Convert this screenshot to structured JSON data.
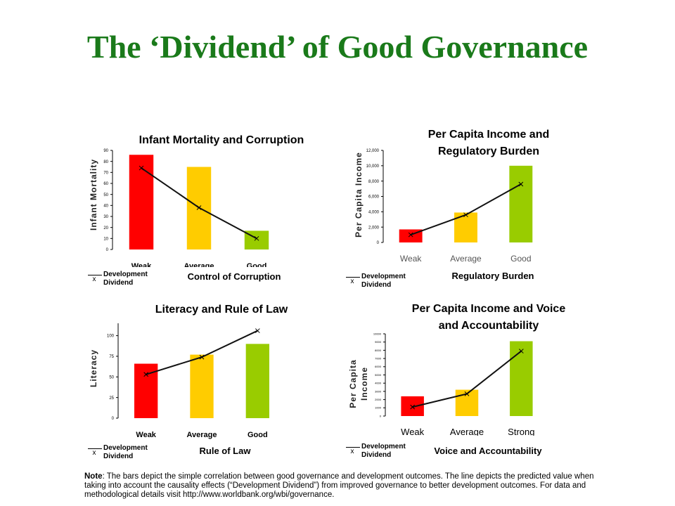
{
  "title": "The ‘Dividend’ of Good Governance",
  "legend_label": "Development Dividend",
  "legend_line1": "Development",
  "legend_line2": "Dividend",
  "legend_marker": "x",
  "note": {
    "label": "Note",
    "text": ": The  bars depict the simple correlation between  good governance and development outcomes.  The line depicts the predicted value when  taking into account the causality effects (“Development Dividend”) from improved governance to better development outcomes. For data and methodological details visit http://www.worldbank.org/wbi/governance."
  },
  "colors": {
    "weak": "#ff0000",
    "average": "#ffcc00",
    "good": "#99cc00",
    "title": "#1a7a1a"
  },
  "chart_data": [
    {
      "type": "bar",
      "title": "Infant Mortality and Corruption",
      "ylabel": "Infant Mortality",
      "xlabel": "Control of Corruption",
      "categories": [
        "Weak",
        "Average",
        "Good"
      ],
      "values": [
        86,
        75,
        17
      ],
      "line": {
        "name": "Development Dividend",
        "values": [
          74,
          38,
          10
        ]
      },
      "ylim": [
        0,
        90
      ],
      "yticks": [
        0,
        10,
        20,
        30,
        40,
        50,
        60,
        70,
        80,
        90
      ],
      "ytick_labels": [
        "0",
        "10",
        "20",
        "30",
        "40",
        "50",
        "60",
        "70",
        "80",
        "90"
      ]
    },
    {
      "type": "bar",
      "title": "Per Capita Income and Regulatory Burden",
      "ylabel": "Per Capita Income",
      "xlabel": "Regulatory Burden",
      "categories": [
        "Weak",
        "Average",
        "Good"
      ],
      "values": [
        1700,
        3900,
        10000
      ],
      "line": {
        "name": "Development Dividend",
        "values": [
          1000,
          3600,
          7600
        ]
      },
      "ylim": [
        0,
        12000
      ],
      "yticks": [
        0,
        2000,
        4000,
        6000,
        8000,
        10000,
        12000
      ],
      "ytick_labels": [
        "0",
        "2,000",
        "4,000",
        "6,000",
        "8,000",
        "10,000",
        "12,000"
      ]
    },
    {
      "type": "bar",
      "title": "Literacy and Rule of Law",
      "ylabel": "Literacy",
      "xlabel": "Rule of Law",
      "categories": [
        "Weak",
        "Average",
        "Good"
      ],
      "values": [
        66,
        77,
        90
      ],
      "line": {
        "name": "Development Dividend",
        "values": [
          53,
          74,
          106
        ]
      },
      "ylim": [
        0,
        115
      ],
      "yticks": [
        0,
        25,
        50,
        75,
        100
      ],
      "ytick_labels": [
        "0",
        "25",
        "50",
        "75",
        "100"
      ]
    },
    {
      "type": "bar",
      "title": "Per Capita Income and Voice and Accountability",
      "ylabel": "Per Capita Income",
      "xlabel": "Voice and Accountability",
      "categories": [
        "Weak",
        "Average",
        "Strong"
      ],
      "values": [
        2400,
        3200,
        9100
      ],
      "line": {
        "name": "Development Dividend",
        "values": [
          1100,
          2700,
          7900
        ]
      },
      "ylim": [
        0,
        10000
      ],
      "yticks": [
        0,
        1000,
        2000,
        3000,
        4000,
        5000,
        6000,
        7000,
        8000,
        9000,
        10000
      ],
      "ytick_labels": [
        "0",
        "1000",
        "2000",
        "3000",
        "4000",
        "5000",
        "6000",
        "7000",
        "8000",
        "9000",
        "10000"
      ]
    }
  ]
}
